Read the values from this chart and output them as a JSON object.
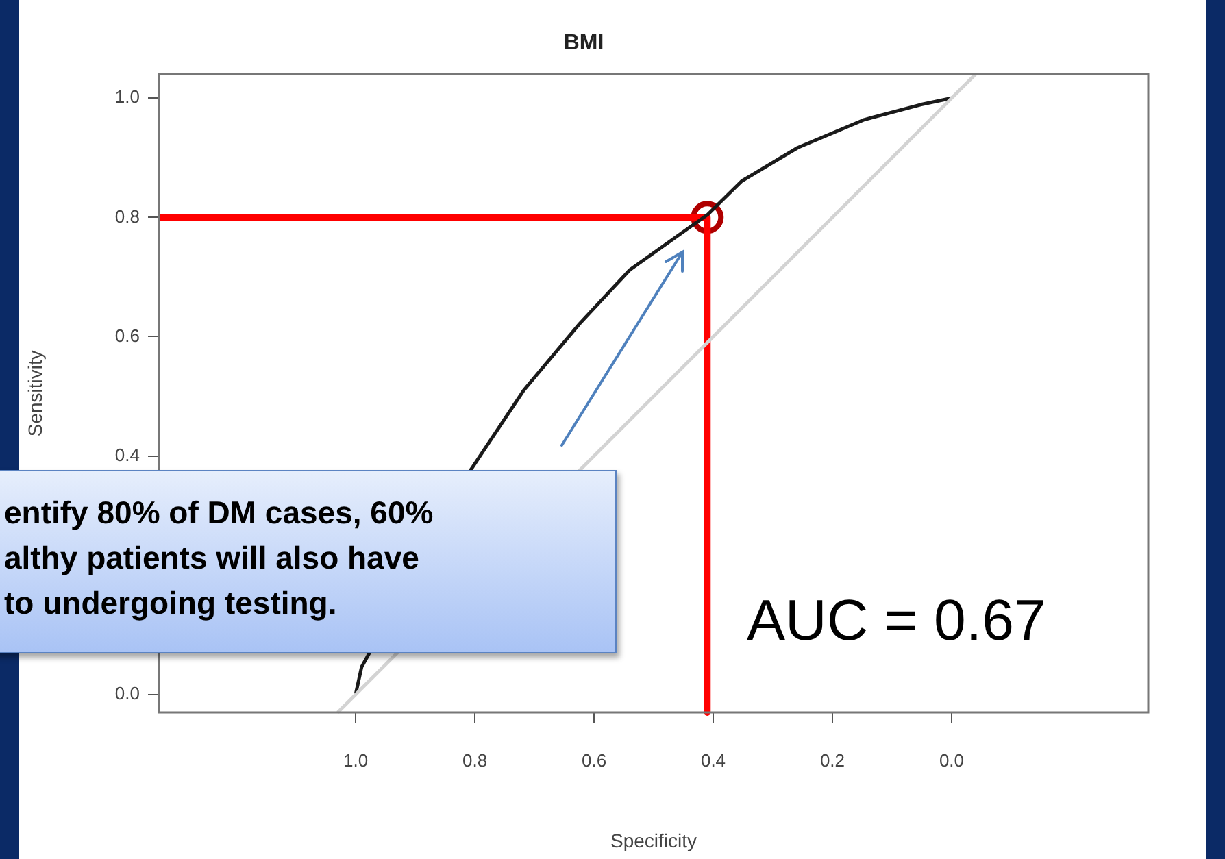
{
  "chart_data": {
    "type": "line",
    "title": "BMI",
    "xlabel": "Specificity",
    "ylabel": "Sensitivity",
    "xlim": [
      1.33,
      -0.33
    ],
    "ylim": [
      -0.03,
      1.04
    ],
    "xticks": [
      {
        "value": 1,
        "label": "1.0"
      },
      0.8,
      0.6,
      0.4,
      0.2,
      {
        "value": 0,
        "label": "0.0"
      }
    ],
    "yticks": [
      {
        "value": 0,
        "label": "0.0"
      },
      {
        "value": 0.2,
        "label": null
      },
      0.4,
      0.6,
      0.8,
      {
        "value": 1,
        "label": "1.0"
      }
    ],
    "grid": false,
    "legend": false,
    "marker": "none",
    "line_style": "solid",
    "series": [
      {
        "color": "#d3d3d3",
        "x": [
          1.03,
          -0.04
        ],
        "values": [
          -0.03,
          1.04
        ]
      },
      {
        "color": "#1a1a1a",
        "x": [
          1.0,
          0.99,
          0.806,
          0.802,
          0.718,
          0.624,
          0.54,
          0.409,
          0.352,
          0.258,
          0.146,
          0.052,
          0.0
        ],
        "values": [
          0.0,
          0.046,
          0.378,
          0.384,
          0.51,
          0.622,
          0.712,
          0.805,
          0.861,
          0.917,
          0.964,
          0.989,
          1.0
        ]
      },
      {
        "color": "#ff0000",
        "x": [
          1.33,
          0.41,
          0.41
        ],
        "values": [
          0.8,
          0.8,
          -0.03
        ]
      },
      {
        "type": "scatter",
        "color": "#b00000",
        "marker": "circle",
        "x": [
          0.41
        ],
        "values": [
          0.8
        ]
      }
    ],
    "annotations": [
      "entify 80% of DM cases, 60%\nalthy patients will also have\nto undergoing testing.",
      "AUC = 0.67"
    ]
  }
}
